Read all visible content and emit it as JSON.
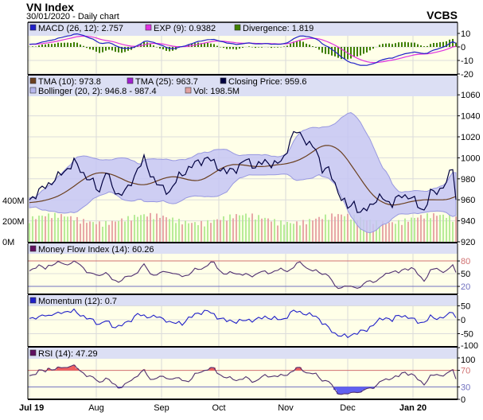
{
  "header": {
    "title": "VN Index",
    "subtitle": "30/01/2020 - Daily chart",
    "brand": "VCBS"
  },
  "colors": {
    "panel_bg": "#ffffe8",
    "legend_bg": "#dcdff4",
    "macd": "#2020c8",
    "exp": "#e030e0",
    "divergence": "#3f7f00",
    "tma10": "#6b4020",
    "tma25": "#a020d0",
    "close": "#000040",
    "boll_fill": "#c6c6f4",
    "boll_line": "#9898e0",
    "vol_up": "#b8ec98",
    "vol_down": "#e8a8a8",
    "overbought": "#d07070",
    "oversold": "#7070c0"
  },
  "chart_data": [
    {
      "type": "line",
      "title": "MACD",
      "legend": [
        {
          "label": "MACD (26, 12): 2.757",
          "color": "#2020c8"
        },
        {
          "label": "EXP (9): 0.9382",
          "color": "#e030e0"
        },
        {
          "label": "Divergence: 1.819",
          "color": "#3f7f00"
        }
      ],
      "yticks": [
        "10",
        "0",
        "-10",
        "-20"
      ],
      "ylim": [
        -20,
        12
      ]
    },
    {
      "type": "line",
      "title": "Price",
      "legend": [
        {
          "label": "TMA (10): 973.8",
          "color": "#6b4020"
        },
        {
          "label": "TMA (25): 963.7",
          "color": "#a020d0"
        },
        {
          "label": "Closing Price: 959.6",
          "color": "#000040"
        },
        {
          "label": "Bollinger (20, 2): 946.8 - 987.4",
          "color": "#b8b8ee"
        },
        {
          "label": "Vol: 198.5M",
          "color": "#e0a0a0"
        }
      ],
      "yticks": [
        "1060",
        "1040",
        "1020",
        "1000",
        "980",
        "960",
        "940",
        "920"
      ],
      "vol_ticks": [
        "400M",
        "200M",
        "0M"
      ],
      "ylim": [
        920,
        1060
      ],
      "close_keypoints": [
        [
          0,
          960
        ],
        [
          3,
          968
        ],
        [
          6,
          975
        ],
        [
          9,
          982
        ],
        [
          12,
          990
        ],
        [
          14,
          996
        ],
        [
          17,
          985
        ],
        [
          20,
          976
        ],
        [
          22,
          968
        ],
        [
          24,
          988
        ],
        [
          26,
          972
        ],
        [
          28,
          965
        ],
        [
          31,
          970
        ],
        [
          34,
          990
        ],
        [
          36,
          998
        ],
        [
          38,
          985
        ],
        [
          41,
          972
        ],
        [
          44,
          968
        ],
        [
          47,
          982
        ],
        [
          50,
          990
        ],
        [
          53,
          996
        ],
        [
          56,
          1000
        ],
        [
          59,
          992
        ],
        [
          62,
          986
        ],
        [
          65,
          990
        ],
        [
          68,
          998
        ],
        [
          71,
          992
        ],
        [
          74,
          996
        ],
        [
          78,
          994
        ],
        [
          80,
          1000
        ],
        [
          82,
          1018
        ],
        [
          84,
          1025
        ],
        [
          86,
          1020
        ],
        [
          88,
          1012
        ],
        [
          90,
          1008
        ],
        [
          92,
          990
        ],
        [
          94,
          988
        ],
        [
          96,
          975
        ],
        [
          98,
          962
        ],
        [
          100,
          952
        ],
        [
          102,
          958
        ],
        [
          104,
          946
        ],
        [
          106,
          952
        ],
        [
          108,
          958
        ],
        [
          111,
          962
        ],
        [
          114,
          956
        ],
        [
          117,
          965
        ],
        [
          120,
          962
        ],
        [
          122,
          955
        ],
        [
          124,
          950
        ],
        [
          126,
          966
        ],
        [
          129,
          970
        ],
        [
          131,
          976
        ],
        [
          133,
          992
        ],
        [
          134,
          960
        ]
      ]
    },
    {
      "type": "line",
      "title": "Money Flow Index",
      "legend": [
        {
          "label": "Money Flow Index (14): 60.26",
          "color": "#601060"
        }
      ],
      "yticks": [
        "80",
        "50",
        "20"
      ],
      "ylim": [
        0,
        100
      ]
    },
    {
      "type": "line",
      "title": "Momentum",
      "legend": [
        {
          "label": "Momentum (12): 0.7",
          "color": "#2020c8"
        }
      ],
      "yticks": [
        "50",
        "0",
        "-50",
        "-100"
      ],
      "ylim": [
        -100,
        50
      ]
    },
    {
      "type": "line",
      "title": "RSI",
      "legend": [
        {
          "label": "RSI (14): 47.29",
          "color": "#601060"
        }
      ],
      "yticks": [
        "100",
        "70",
        "30",
        "0"
      ],
      "ylim": [
        0,
        100
      ]
    }
  ],
  "x_labels": [
    {
      "label": "Jul 19",
      "day": 0,
      "bold": true
    },
    {
      "label": "Aug",
      "day": 21,
      "bold": false
    },
    {
      "label": "Sep",
      "day": 41.5,
      "bold": false
    },
    {
      "label": "Oct",
      "day": 59.5,
      "bold": false
    },
    {
      "label": "Nov",
      "day": 80.5,
      "bold": false
    },
    {
      "label": "Dec",
      "day": 100,
      "bold": false
    },
    {
      "label": "Jan 20",
      "day": 120.5,
      "bold": true
    }
  ],
  "days": 135
}
